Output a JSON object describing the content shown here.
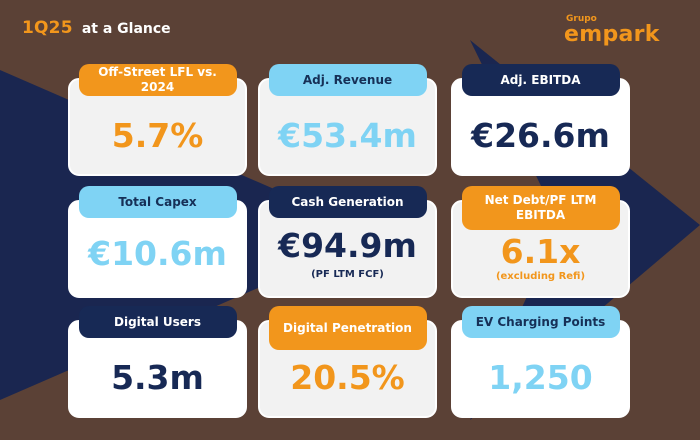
{
  "header": {
    "period": "1Q25",
    "title_rest": "at a Glance"
  },
  "brand": {
    "sup": "Grupo",
    "name": "empark"
  },
  "colors": {
    "orange": "#f2961c",
    "light_blue": "#7fd3f4",
    "navy": "#172955",
    "background": "#5b4136"
  },
  "cards": [
    {
      "label": "Off-Street LFL vs. 2024",
      "value": "5.7%"
    },
    {
      "label": "Adj. Revenue",
      "value": "€53.4m"
    },
    {
      "label": "Adj. EBITDA",
      "value": "€26.6m"
    },
    {
      "label": "Total Capex",
      "value": "€10.6m"
    },
    {
      "label": "Cash Generation",
      "value": "€94.9m",
      "sub": "(PF LTM FCF)"
    },
    {
      "label": "Net Debt/PF LTM EBITDA",
      "value": "6.1x",
      "sub": "(excluding Refi)"
    },
    {
      "label": "Digital Users",
      "value": "5.3m"
    },
    {
      "label": "Digital Penetration",
      "value": "20.5%"
    },
    {
      "label": "EV Charging Points",
      "value": "1,250"
    }
  ]
}
